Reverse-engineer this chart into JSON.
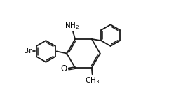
{
  "bg_color": "#ffffff",
  "bond_color": "#1a1a1a",
  "text_color": "#000000",
  "figsize": [
    2.41,
    1.53
  ],
  "dpi": 100,
  "rc": [
    0.5,
    0.5
  ],
  "rr": 0.155,
  "ph_r": 0.1,
  "brph_r": 0.1,
  "lw": 1.3,
  "lw_inner": 1.1
}
